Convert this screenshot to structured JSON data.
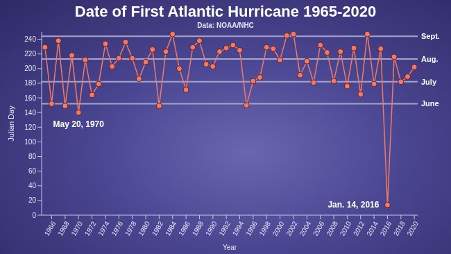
{
  "chart_data": {
    "type": "line",
    "title": "Date of First Atlantic Hurricane 1965-2020",
    "subtitle": "Data: NOAA/NHC",
    "x_label": "Year",
    "y_label": "Julian Day",
    "x": [
      1965,
      1966,
      1967,
      1968,
      1969,
      1970,
      1971,
      1972,
      1973,
      1974,
      1975,
      1976,
      1977,
      1978,
      1979,
      1980,
      1981,
      1982,
      1983,
      1984,
      1985,
      1986,
      1987,
      1988,
      1989,
      1990,
      1991,
      1992,
      1993,
      1994,
      1995,
      1996,
      1997,
      1998,
      1999,
      2000,
      2001,
      2002,
      2003,
      2004,
      2005,
      2006,
      2007,
      2008,
      2009,
      2010,
      2011,
      2012,
      2013,
      2014,
      2015,
      2016,
      2017,
      2018,
      2019,
      2020
    ],
    "values": [
      229,
      152,
      238,
      149,
      218,
      140,
      212,
      164,
      179,
      234,
      203,
      214,
      236,
      214,
      186,
      209,
      226,
      149,
      223,
      247,
      200,
      171,
      229,
      238,
      206,
      203,
      223,
      228,
      232,
      225,
      150,
      183,
      188,
      229,
      227,
      212,
      245,
      247,
      191,
      210,
      181,
      232,
      222,
      183,
      223,
      176,
      228,
      165,
      247,
      179,
      227,
      14,
      216,
      182,
      189,
      202
    ],
    "color": "#f07a66",
    "marker": "circle",
    "xlim": [
      1964.5,
      2020.5
    ],
    "xticks": [
      1966,
      1968,
      1970,
      1972,
      1974,
      1976,
      1978,
      1980,
      1982,
      1984,
      1986,
      1988,
      1990,
      1992,
      1994,
      1996,
      1998,
      2000,
      2002,
      2004,
      2006,
      2008,
      2010,
      2012,
      2014,
      2016,
      2018,
      2020
    ],
    "ylim": [
      0,
      250
    ],
    "yticks": [
      0,
      20,
      40,
      60,
      80,
      100,
      120,
      140,
      160,
      180,
      200,
      220,
      240
    ],
    "grid": false,
    "reference_lines": [
      {
        "value": 244,
        "label": "Sept."
      },
      {
        "value": 213,
        "label": "Aug."
      },
      {
        "value": 182,
        "label": "July"
      },
      {
        "value": 152,
        "label": "June"
      }
    ],
    "annotations": [
      {
        "text": "May 20, 1970",
        "x": 1970,
        "y": 140
      },
      {
        "text": "Jan. 14, 2016",
        "x": 2016,
        "y": 14
      }
    ]
  }
}
